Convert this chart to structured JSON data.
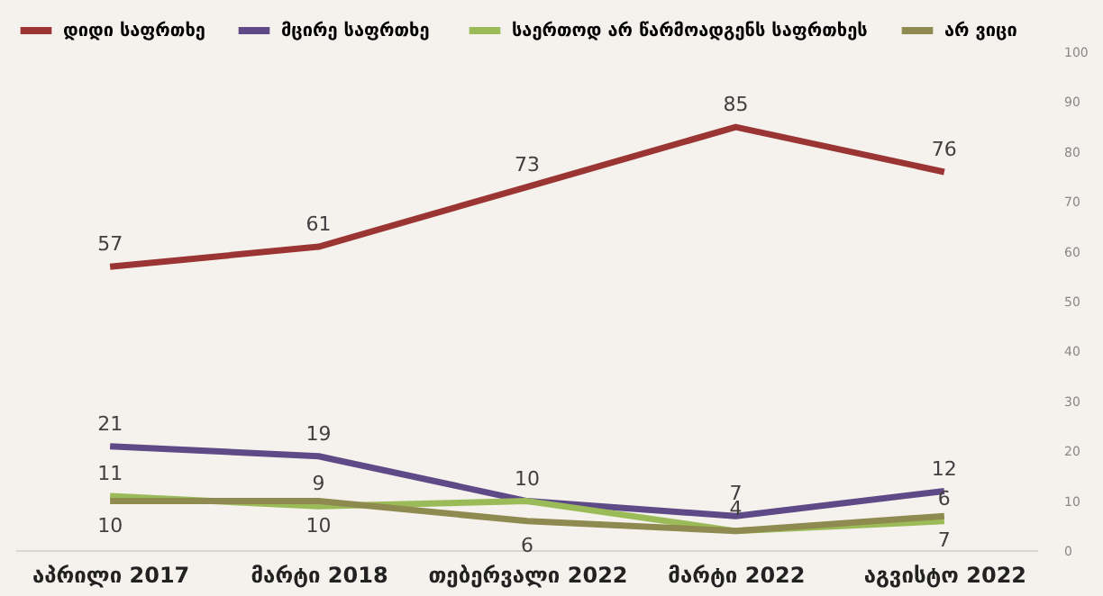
{
  "chart_data": {
    "type": "line",
    "categories": [
      "აპრილი 2017",
      "მარტი 2018",
      "თებერვალი 2022",
      "მარტი 2022",
      "აგვისტო 2022"
    ],
    "series": [
      {
        "name": "დიდი საფრთხე",
        "color": "#9b3534",
        "values": [
          57,
          61,
          73,
          85,
          76
        ],
        "value_labels": [
          "57",
          "61",
          "73",
          "85",
          "76"
        ]
      },
      {
        "name": "მცირე  საფრთხე",
        "color": "#5e4a86",
        "values": [
          21,
          19,
          10,
          7,
          12
        ],
        "value_labels": [
          "21",
          "19",
          "10",
          "7",
          "12"
        ]
      },
      {
        "name": "საერთოდ არ წარმოადგენს საფრთხეს",
        "color": "#9bbb59",
        "values": [
          11,
          9,
          10,
          4,
          6
        ],
        "value_labels": [
          "11",
          "9",
          null,
          "4",
          "6"
        ]
      },
      {
        "name": "არ ვიცი",
        "color": "#8f8a50",
        "values": [
          10,
          10,
          6,
          4,
          7
        ],
        "value_labels": [
          "10",
          "10",
          "6",
          null,
          "7"
        ]
      }
    ],
    "ylim": [
      0,
      100
    ],
    "yticks": [
      0,
      10,
      20,
      30,
      40,
      50,
      60,
      70,
      80,
      90,
      100
    ],
    "grid": false,
    "legend": "top left",
    "marker": "none",
    "line_style": "solid"
  }
}
